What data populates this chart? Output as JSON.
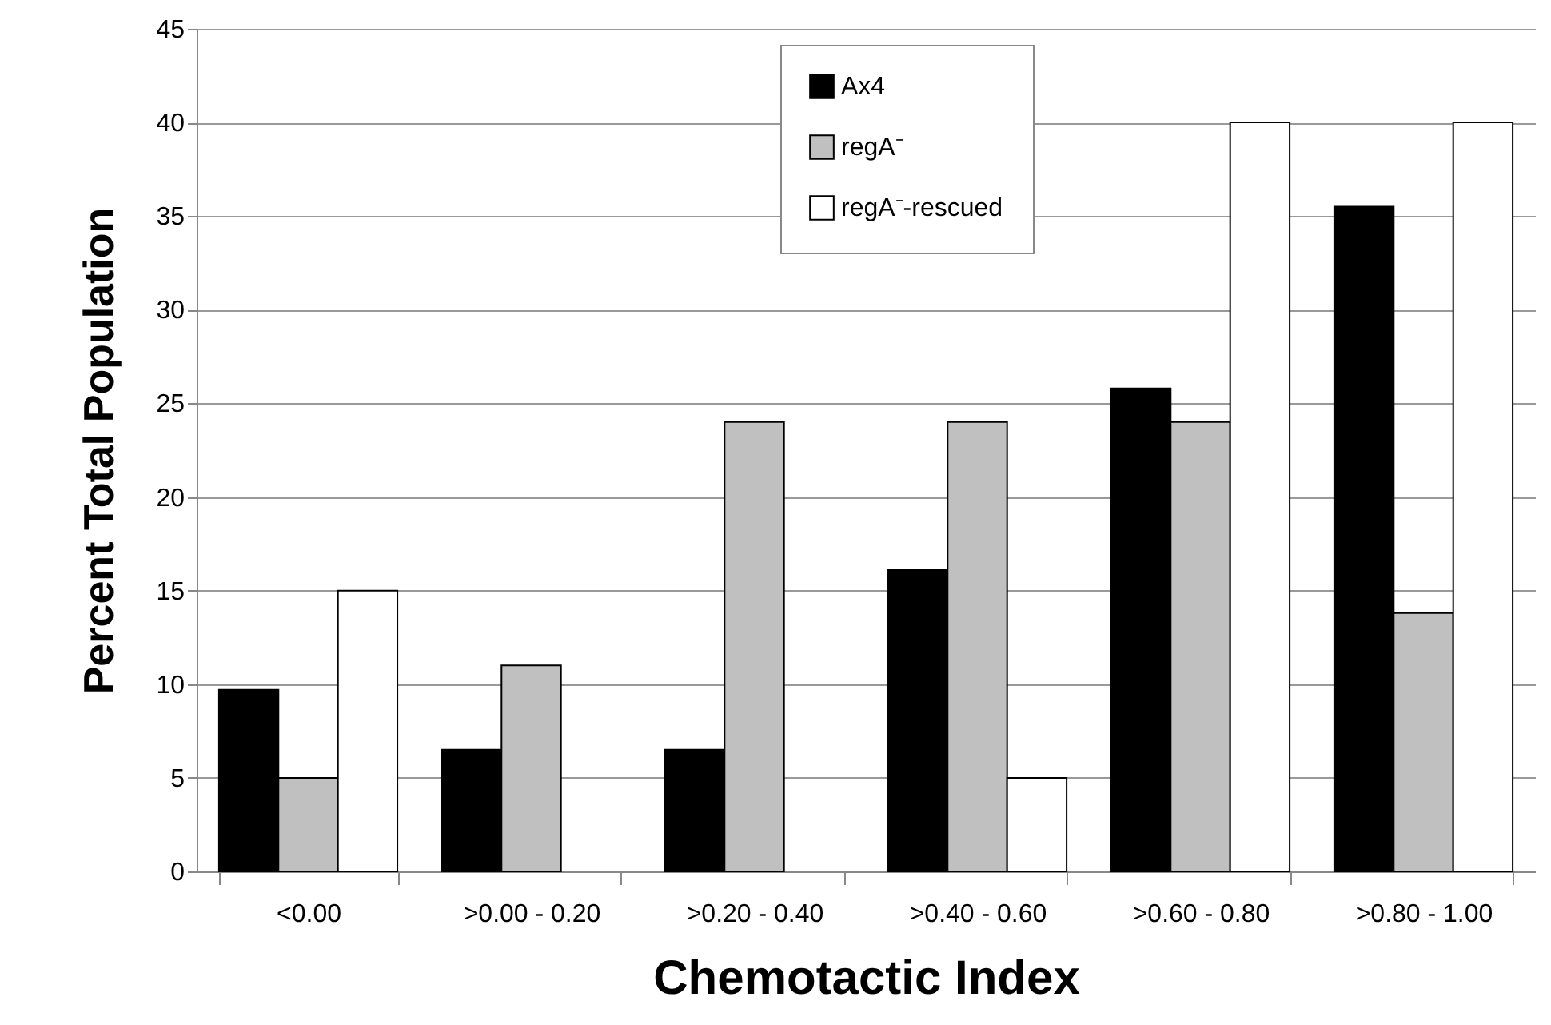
{
  "chart_data": {
    "type": "bar",
    "xlabel": "Chemotactic Index",
    "ylabel": "Percent Total Population",
    "categories": [
      "<0.00",
      ">0.00 - 0.20",
      ">0.20 - 0.40",
      ">0.40 - 0.60",
      ">0.60 - 0.80",
      ">0.80 - 1.00"
    ],
    "series": [
      {
        "name": "Ax4",
        "color": "#000000",
        "values": [
          9.7,
          6.5,
          6.5,
          16.1,
          25.8,
          35.5
        ]
      },
      {
        "name": "regA⁻",
        "color": "#c0c0c0",
        "values": [
          5,
          11,
          24,
          24,
          24,
          13.8
        ]
      },
      {
        "name": "regA⁻-rescued",
        "color": "#ffffff",
        "values": [
          15,
          null,
          null,
          5,
          40,
          40
        ]
      }
    ],
    "ylim": [
      0,
      45
    ],
    "yticks": [
      0,
      5,
      10,
      15,
      20,
      25,
      30,
      35,
      40,
      45
    ],
    "grid": "y",
    "legend": "top"
  }
}
